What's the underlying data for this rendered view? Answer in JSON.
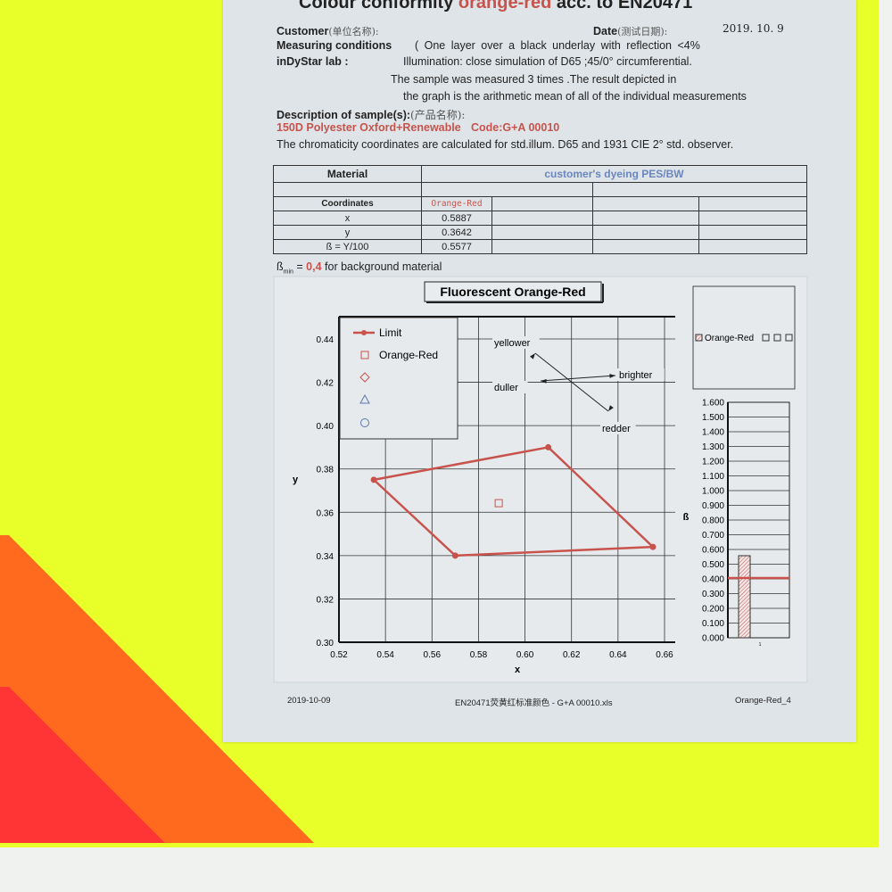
{
  "header": {
    "title_pre": "Colour conformity ",
    "title_color": "orange-red",
    "title_post": " acc. to EN20471",
    "customer_label": "Customer",
    "customer_cn": "(单位名称):",
    "date_label": "Date",
    "date_cn": "(测试日期):",
    "date_value": "2019. 10. 9",
    "measuring_label": "Measuring conditions",
    "measuring_text": "(      One  layer  over  a  black  underlay  with  reflection <4%",
    "lab_label": "inDyStar lab :",
    "lab_text": "Illumination: close simulation of D65 ;45/0° circumferential.",
    "note1": "The sample was measured 3 times .The  result  depicted in",
    "note2": "the graph is the arithmetic mean of all of   the  individual measurements",
    "desc_label": "Description of sample(s):",
    "desc_cn": "(产品名称):",
    "sample_name": "150D Polyester Oxford+Renewable",
    "sample_code": "Code:G+A  00010",
    "chroma_note": "The chromaticity coordinates are calculated for std.illum. D65 and 1931 CIE 2° std. observer."
  },
  "table": {
    "material_label": "Material",
    "material_value": "customer's dyeing PES/BW",
    "coords_label": "Coordinates",
    "sample_col": "Orange-Red",
    "rows": [
      {
        "label": "x",
        "value": "0.5887"
      },
      {
        "label": "y",
        "value": "0.3642"
      },
      {
        "label": "ß = Y/100",
        "value": "0.5577"
      }
    ]
  },
  "beta_note": {
    "pre": "ß",
    "sub": "min",
    "eq": " = ",
    "value": "0,4",
    "post": " for background material"
  },
  "colors": {
    "limit": "#c8534c",
    "accent_red": "#c8534c",
    "blue_header": "#6a86bd",
    "fabric_yellow": "#e8ff2a",
    "fabric_orange": "#ff6a1e",
    "fabric_red": "#ff3030"
  },
  "chart_data": [
    {
      "type": "scatter",
      "title": "Fluorescent Orange-Red",
      "xlabel": "x",
      "ylabel": "y",
      "xlim": [
        0.52,
        0.66
      ],
      "ylim": [
        0.3,
        0.44
      ],
      "xticks": [
        "0.52",
        "0.54",
        "0.56",
        "0.58",
        "0.60",
        "0.62",
        "0.64",
        "0.66"
      ],
      "yticks": [
        "0.30",
        "0.32",
        "0.34",
        "0.36",
        "0.38",
        "0.40",
        "0.42",
        "0.44"
      ],
      "grid": true,
      "legend_placement": "top-left",
      "legend": [
        "Limit",
        "Orange-Red"
      ],
      "series": [
        {
          "name": "Limit",
          "type": "line",
          "points": [
            [
              0.535,
              0.375
            ],
            [
              0.61,
              0.39
            ],
            [
              0.655,
              0.344
            ],
            [
              0.57,
              0.34
            ],
            [
              0.535,
              0.375
            ]
          ]
        },
        {
          "name": "Orange-Red",
          "type": "scatter",
          "marker": "square",
          "points": [
            [
              0.5887,
              0.3642
            ]
          ]
        }
      ],
      "annotations": [
        "yellower",
        "duller",
        "brighter",
        "redder"
      ]
    },
    {
      "type": "bar",
      "ylabel": "ß",
      "ylim": [
        0,
        1.6
      ],
      "categories": [
        "1"
      ],
      "yticks": [
        "0.000",
        "0.100",
        "0.200",
        "0.300",
        "0.400",
        "0.500",
        "0.600",
        "0.700",
        "0.800",
        "0.900",
        "1.000",
        "1.100",
        "1.200",
        "1.300",
        "1.400",
        "1.500",
        "1.600"
      ],
      "series": [
        {
          "name": "Orange-Red",
          "values": [
            0.5577
          ]
        }
      ],
      "threshold": 0.4,
      "legend": [
        "Orange-Red"
      ]
    }
  ],
  "footer": {
    "date": "2019-10-09",
    "file": "EN20471荧黄红标准颜色 - G+A 00010.xls",
    "sheet": "Orange-Red_4"
  }
}
